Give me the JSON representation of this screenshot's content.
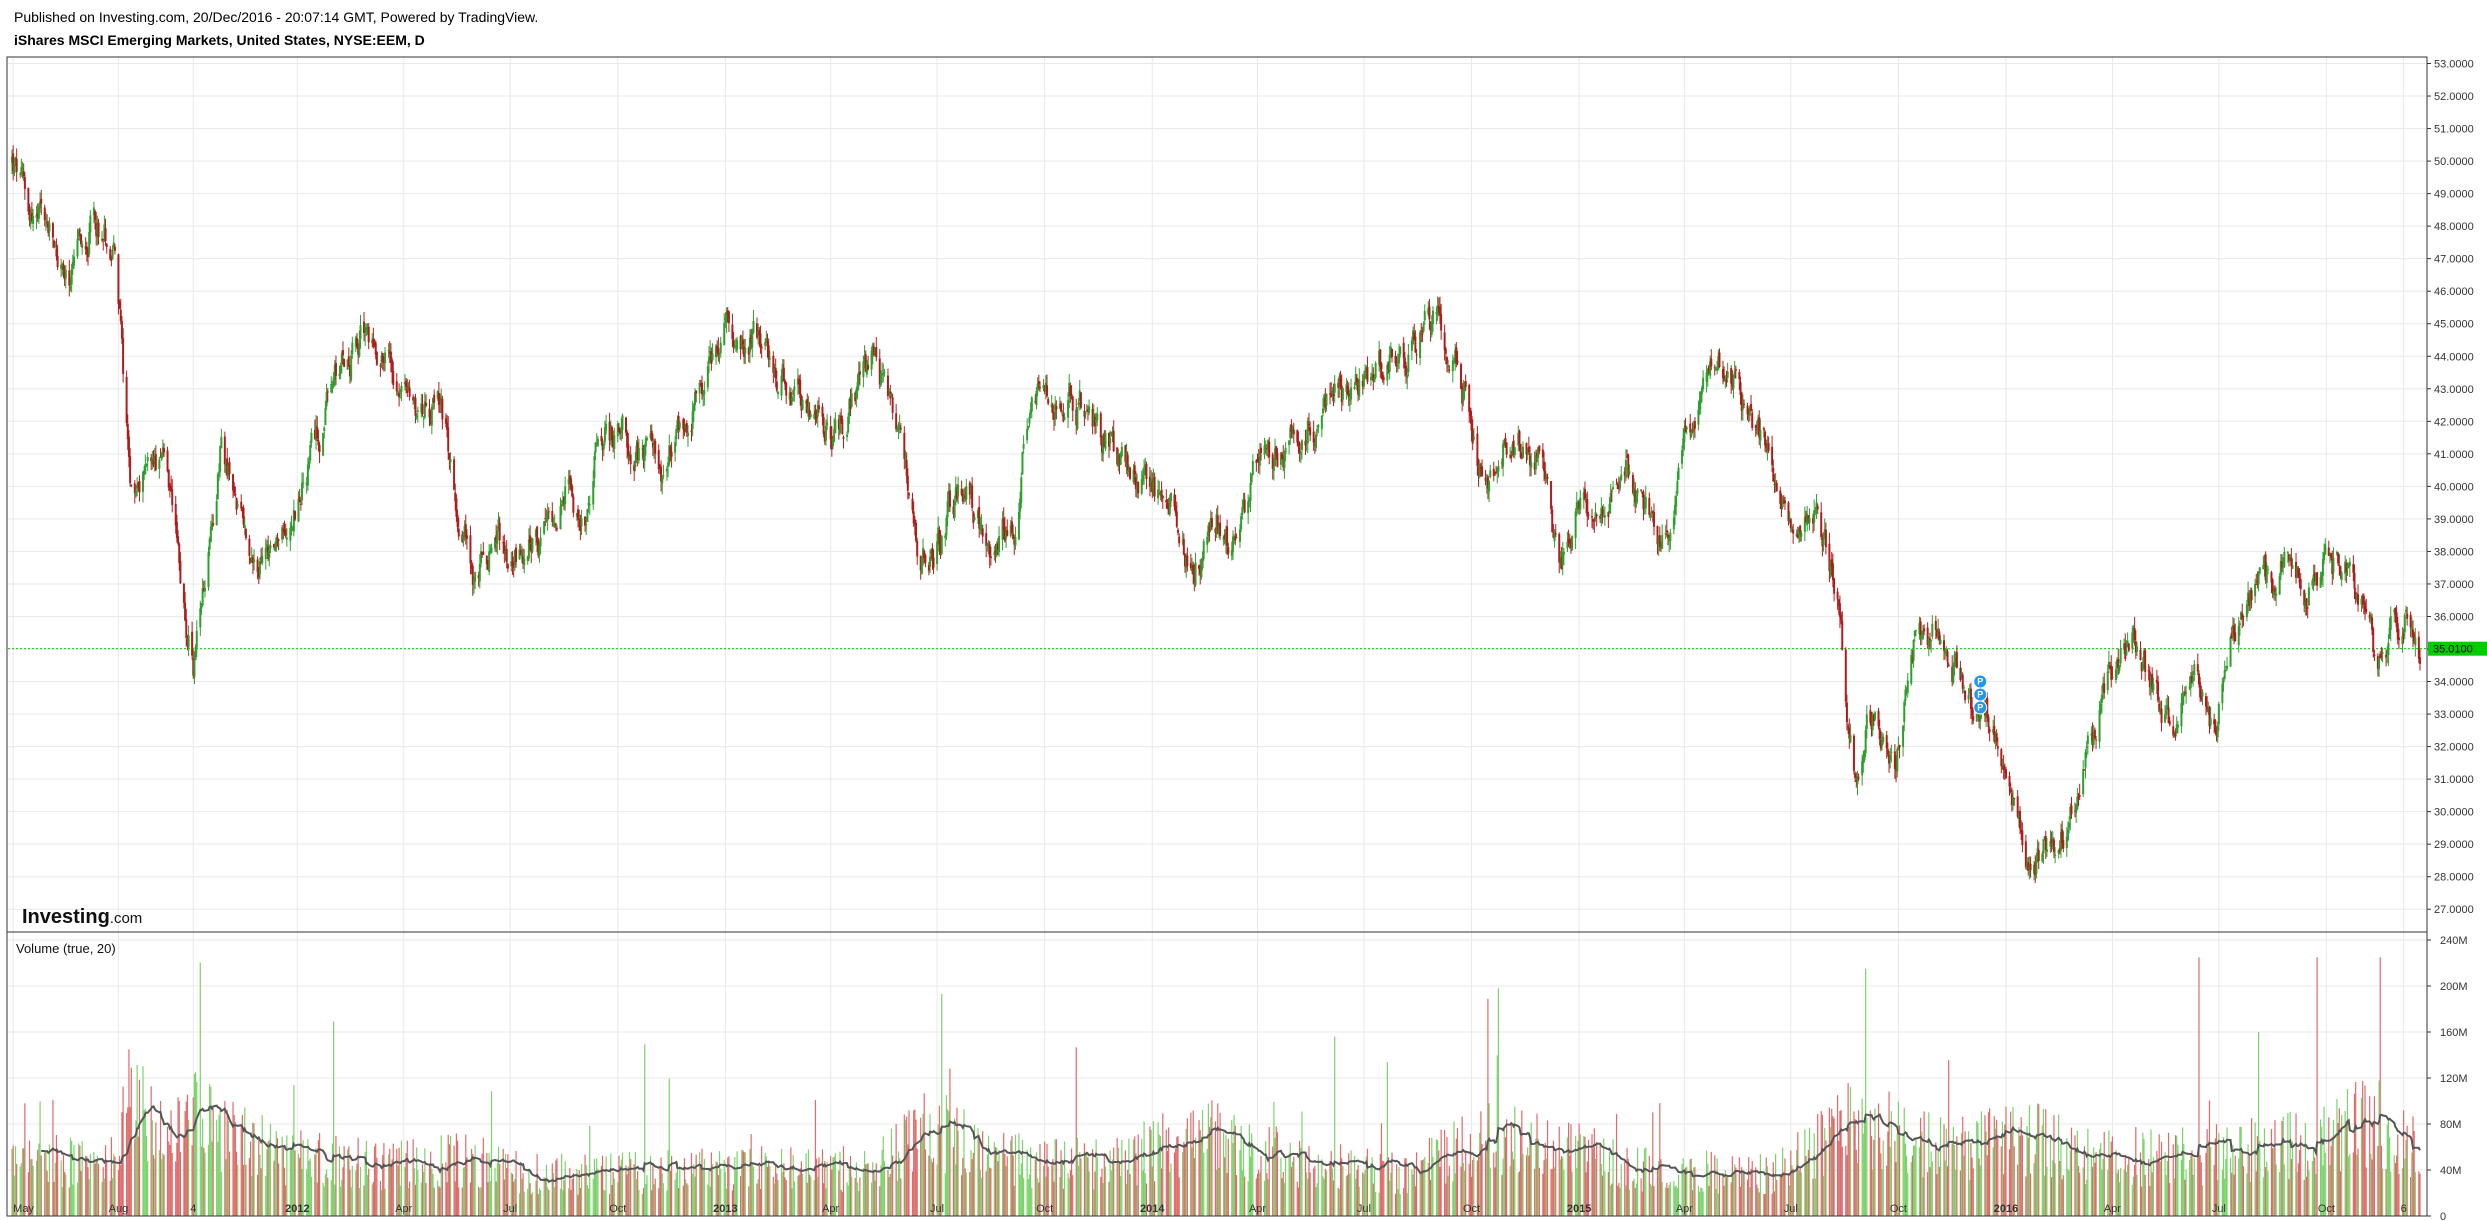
{
  "header": {
    "published": "Published on Investing.com, 20/Dec/2016 - 20:07:14 GMT, Powered by TradingView.",
    "symbol": "iShares MSCI Emerging Markets, United States, NYSE:EEM, D"
  },
  "logo": {
    "main": "Investing",
    "sub": ".com"
  },
  "colors": {
    "up": "#2e9e2e",
    "down": "#b01c1c",
    "vol_up": "#7bd36b",
    "vol_down": "#e06a6a",
    "ma": "#555555",
    "last_price": "#00cc00",
    "marker": "#2196f3"
  },
  "chart_data": [
    {
      "type": "candlestick",
      "title": "",
      "x_ticks": [
        "May",
        "Aug",
        "4",
        "2012",
        "Apr",
        "Jul",
        "Oct",
        "2013",
        "Apr",
        "Jul",
        "Oct",
        "2014",
        "Apr",
        "Jul",
        "Oct",
        "2015",
        "Apr",
        "Jul",
        "Oct",
        "2016",
        "Apr",
        "Jul",
        "Oct",
        "6"
      ],
      "x_ticks_bold": [
        "2012",
        "2013",
        "2014",
        "2015",
        "2016"
      ],
      "y_ticks": [
        "27.0000",
        "28.0000",
        "29.0000",
        "30.0000",
        "31.0000",
        "32.0000",
        "33.0000",
        "34.0000",
        "35.0000",
        "36.0000",
        "37.0000",
        "38.0000",
        "39.0000",
        "40.0000",
        "41.0000",
        "42.0000",
        "43.0000",
        "44.0000",
        "45.0000",
        "46.0000",
        "47.0000",
        "48.0000",
        "49.0000",
        "50.0000",
        "51.0000",
        "52.0000",
        "53.0000"
      ],
      "ylim": [
        26.3,
        53.2
      ],
      "last_price": 35.01,
      "last_price_label": "35.0100",
      "marker_letter": "P",
      "grid": true,
      "close_anchors": [
        [
          "2011-05-02",
          50.0
        ],
        [
          "2011-05-15",
          48.6
        ],
        [
          "2011-06-01",
          47.8
        ],
        [
          "2011-06-20",
          46.0
        ],
        [
          "2011-07-10",
          48.2
        ],
        [
          "2011-07-28",
          47.5
        ],
        [
          "2011-08-05",
          43.5
        ],
        [
          "2011-08-12",
          40.0
        ],
        [
          "2011-08-26",
          41.0
        ],
        [
          "2011-09-09",
          40.5
        ],
        [
          "2011-09-22",
          37.0
        ],
        [
          "2011-10-04",
          34.5
        ],
        [
          "2011-10-12",
          36.5
        ],
        [
          "2011-10-28",
          41.5
        ],
        [
          "2011-11-10",
          39.5
        ],
        [
          "2011-11-25",
          37.0
        ],
        [
          "2011-12-08",
          38.0
        ],
        [
          "2011-12-20",
          38.2
        ],
        [
          "2012-01-10",
          40.5
        ],
        [
          "2012-01-31",
          43.0
        ],
        [
          "2012-02-28",
          44.8
        ],
        [
          "2012-03-20",
          44.0
        ],
        [
          "2012-04-10",
          42.5
        ],
        [
          "2012-05-01",
          42.6
        ],
        [
          "2012-05-20",
          39.0
        ],
        [
          "2012-06-01",
          37.0
        ],
        [
          "2012-06-20",
          38.5
        ],
        [
          "2012-07-01",
          38.0
        ],
        [
          "2012-07-25",
          38.2
        ],
        [
          "2012-08-15",
          39.8
        ],
        [
          "2012-09-05",
          39.0
        ],
        [
          "2012-09-15",
          41.8
        ],
        [
          "2012-10-10",
          41.5
        ],
        [
          "2012-11-10",
          40.5
        ],
        [
          "2012-12-10",
          43.0
        ],
        [
          "2013-01-03",
          45.0
        ],
        [
          "2013-02-01",
          44.2
        ],
        [
          "2013-03-01",
          43.0
        ],
        [
          "2013-04-05",
          41.5
        ],
        [
          "2013-05-08",
          43.8
        ],
        [
          "2013-05-25",
          42.0
        ],
        [
          "2013-06-10",
          39.0
        ],
        [
          "2013-06-24",
          37.0
        ],
        [
          "2013-07-10",
          39.0
        ],
        [
          "2013-07-25",
          39.8
        ],
        [
          "2013-08-20",
          38.0
        ],
        [
          "2013-09-05",
          39.0
        ],
        [
          "2013-09-18",
          42.5
        ],
        [
          "2013-10-22",
          42.9
        ],
        [
          "2013-11-20",
          41.5
        ],
        [
          "2013-12-20",
          40.0
        ],
        [
          "2014-01-15",
          39.8
        ],
        [
          "2014-02-03",
          37.5
        ],
        [
          "2014-02-25",
          39.0
        ],
        [
          "2014-03-15",
          38.0
        ],
        [
          "2014-04-01",
          40.5
        ],
        [
          "2014-05-01",
          41.5
        ],
        [
          "2014-06-01",
          42.5
        ],
        [
          "2014-07-01",
          43.5
        ],
        [
          "2014-08-01",
          44.0
        ],
        [
          "2014-09-04",
          45.6
        ],
        [
          "2014-09-20",
          43.5
        ],
        [
          "2014-10-05",
          41.0
        ],
        [
          "2014-10-20",
          40.3
        ],
        [
          "2014-11-05",
          41.8
        ],
        [
          "2014-12-01",
          40.5
        ],
        [
          "2014-12-16",
          37.5
        ],
        [
          "2014-12-30",
          39.3
        ],
        [
          "2015-01-15",
          39.0
        ],
        [
          "2015-02-10",
          40.5
        ],
        [
          "2015-03-10",
          38.2
        ],
        [
          "2015-03-30",
          40.5
        ],
        [
          "2015-04-15",
          43.0
        ],
        [
          "2015-04-28",
          44.0
        ],
        [
          "2015-05-15",
          43.0
        ],
        [
          "2015-06-10",
          41.0
        ],
        [
          "2015-07-08",
          39.0
        ],
        [
          "2015-07-20",
          39.5
        ],
        [
          "2015-08-10",
          37.0
        ],
        [
          "2015-08-24",
          31.0
        ],
        [
          "2015-09-05",
          33.0
        ],
        [
          "2015-09-28",
          31.8
        ],
        [
          "2015-10-15",
          35.0
        ],
        [
          "2015-11-03",
          35.6
        ],
        [
          "2015-12-01",
          33.5
        ],
        [
          "2015-12-18",
          33.0
        ],
        [
          "2016-01-08",
          30.5
        ],
        [
          "2016-01-21",
          28.2
        ],
        [
          "2016-02-11",
          29.0
        ],
        [
          "2016-03-01",
          30.5
        ],
        [
          "2016-03-31",
          34.2
        ],
        [
          "2016-04-20",
          35.2
        ],
        [
          "2016-05-05",
          34.0
        ],
        [
          "2016-05-24",
          32.2
        ],
        [
          "2016-06-10",
          34.0
        ],
        [
          "2016-06-27",
          32.3
        ],
        [
          "2016-07-15",
          35.5
        ],
        [
          "2016-08-10",
          36.8
        ],
        [
          "2016-08-25",
          37.5
        ],
        [
          "2016-09-12",
          36.8
        ],
        [
          "2016-10-01",
          37.8
        ],
        [
          "2016-10-25",
          37.0
        ],
        [
          "2016-11-03",
          36.2
        ],
        [
          "2016-11-14",
          34.5
        ],
        [
          "2016-11-28",
          35.5
        ],
        [
          "2016-12-08",
          36.2
        ],
        [
          "2016-12-20",
          35.0
        ]
      ]
    },
    {
      "type": "bar",
      "title": "Volume (true, 20)",
      "y_ticks": [
        "0",
        "40M",
        "80M",
        "120M",
        "160M",
        "200M",
        "240M"
      ],
      "ylim": [
        0,
        240000000
      ],
      "ma_period": 20,
      "volume_base": [
        [
          "2011-05-02",
          55000000
        ],
        [
          "2011-07-25",
          50000000
        ],
        [
          "2011-08-10",
          110000000
        ],
        [
          "2011-09-15",
          70000000
        ],
        [
          "2011-10-05",
          95000000
        ],
        [
          "2011-12-15",
          60000000
        ],
        [
          "2012-03-01",
          50000000
        ],
        [
          "2012-05-25",
          55000000
        ],
        [
          "2012-07-15",
          40000000
        ],
        [
          "2012-10-15",
          42000000
        ],
        [
          "2013-01-10",
          45000000
        ],
        [
          "2013-05-01",
          45000000
        ],
        [
          "2013-06-25",
          85000000
        ],
        [
          "2013-08-25",
          55000000
        ],
        [
          "2013-12-01",
          50000000
        ],
        [
          "2014-02-05",
          80000000
        ],
        [
          "2014-05-01",
          55000000
        ],
        [
          "2014-08-01",
          40000000
        ],
        [
          "2014-10-15",
          75000000
        ],
        [
          "2014-12-15",
          65000000
        ],
        [
          "2015-03-01",
          45000000
        ],
        [
          "2015-06-15",
          40000000
        ],
        [
          "2015-08-25",
          95000000
        ],
        [
          "2015-11-01",
          65000000
        ],
        [
          "2016-01-20",
          75000000
        ],
        [
          "2016-04-01",
          55000000
        ],
        [
          "2016-07-01",
          60000000
        ],
        [
          "2016-09-15",
          70000000
        ],
        [
          "2016-11-12",
          95000000
        ],
        [
          "2016-12-20",
          60000000
        ]
      ]
    }
  ]
}
